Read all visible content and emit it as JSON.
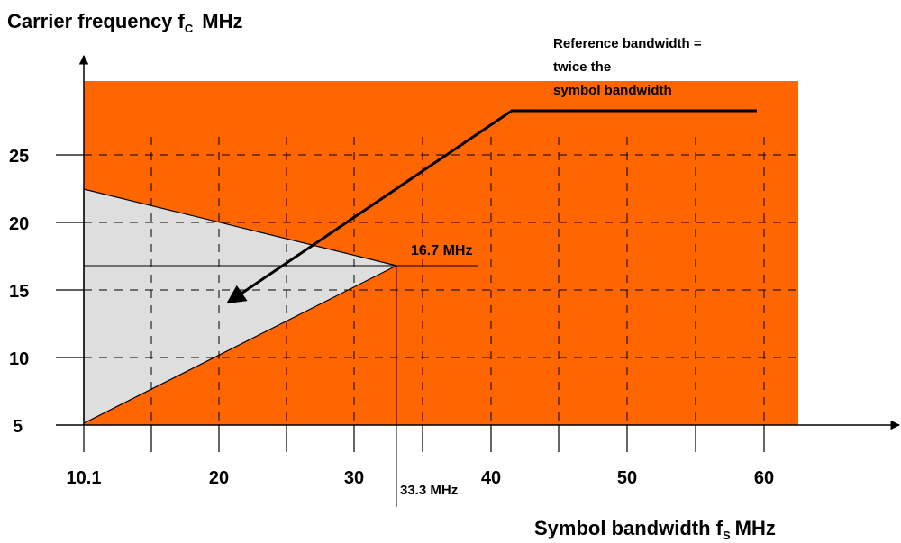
{
  "chart_data": {
    "type": "diagram",
    "ylabel": {
      "main": "Carrier frequency f",
      "sub": "C",
      "unit": "MHz"
    },
    "xlabel": {
      "main": "Symbol bandwidth f",
      "sub": "S",
      "unit": "MHz"
    },
    "y_ticks": [
      "25",
      "20",
      "15",
      "10",
      "5"
    ],
    "x_ticks": [
      "10.1",
      "20",
      "30",
      "40",
      "50",
      "60"
    ],
    "annotation_lines": [
      "Reference bandwidth =",
      "twice the",
      "symbol bandwidth"
    ],
    "marker_fc": "16.7 MHz",
    "marker_fs": "33.3 MHz",
    "region_top_fc": 22.5,
    "vertex": {
      "fs": 33.3,
      "fc": 16.7
    }
  },
  "colors": {
    "region_fill": "#ff6600",
    "triangle_fill": "#dedede",
    "line": "#000000"
  }
}
